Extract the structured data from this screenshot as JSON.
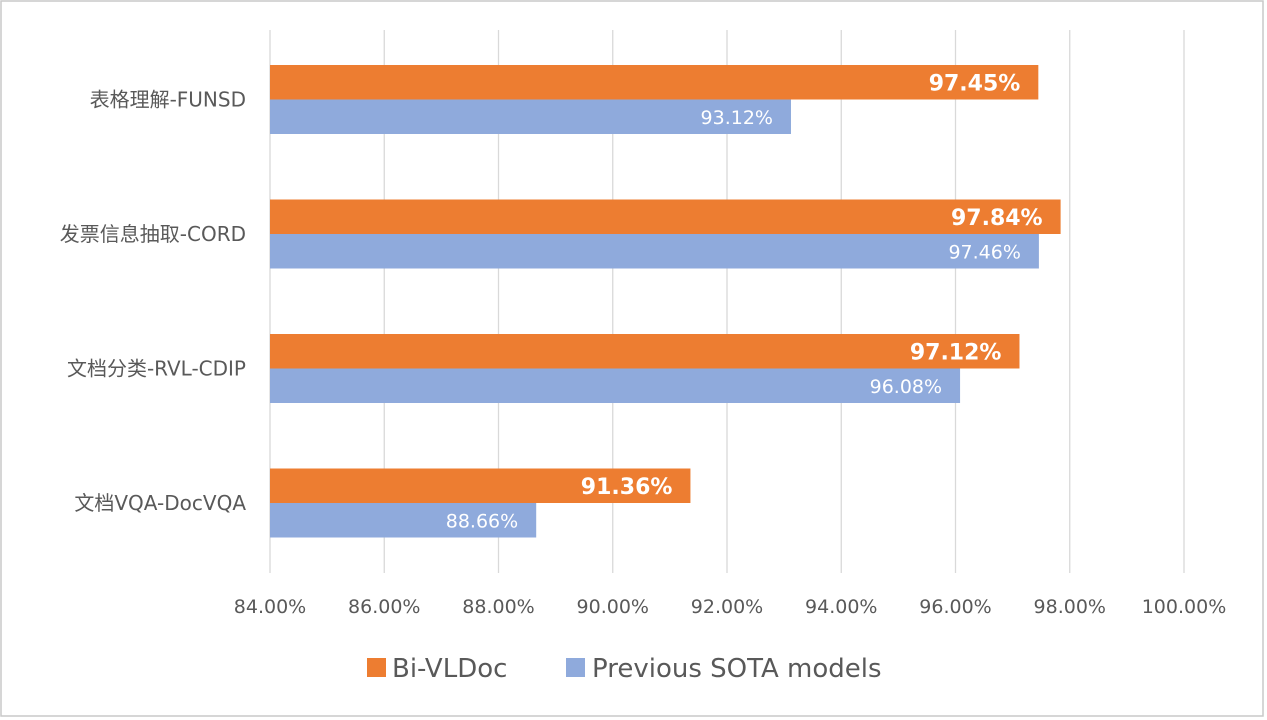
{
  "chart_data": {
    "type": "bar",
    "orientation": "horizontal",
    "title": "",
    "xlabel": "",
    "ylabel": "",
    "categories": [
      "表格理解-FUNSD",
      "发票信息抽取-CORD",
      "文档分类-RVL-CDIP",
      "文档VQA-DocVQA"
    ],
    "series": [
      {
        "name": "Bi-VLDoc",
        "color": "#ed7d31",
        "values": [
          97.45,
          97.84,
          97.12,
          91.36
        ],
        "labels": [
          "97.45%",
          "97.84%",
          "97.12%",
          "91.36%"
        ],
        "label_weight": "bold"
      },
      {
        "name": "Previous SOTA models",
        "color": "#8faadc",
        "values": [
          93.12,
          97.46,
          96.08,
          88.66
        ],
        "labels": [
          "93.12%",
          "97.46%",
          "96.08%",
          "88.66%"
        ],
        "label_weight": "normal"
      }
    ],
    "xlim": [
      84,
      100
    ],
    "x_ticks": [
      84,
      86,
      88,
      90,
      92,
      94,
      96,
      98,
      100
    ],
    "x_tick_labels": [
      "84.00%",
      "86.00%",
      "88.00%",
      "90.00%",
      "92.00%",
      "94.00%",
      "96.00%",
      "98.00%",
      "100.00%"
    ],
    "grid": true,
    "legend_position": "bottom-center"
  }
}
